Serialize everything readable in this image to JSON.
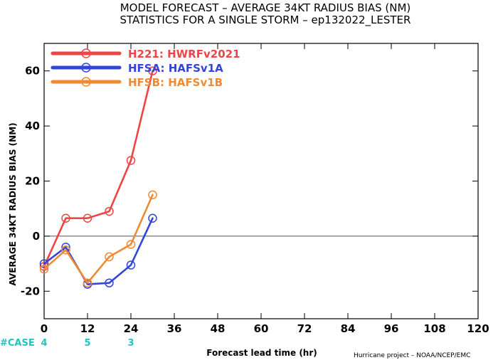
{
  "chart_data": {
    "type": "line",
    "title": "MODEL FORECAST – AVERAGE 34KT RADIUS BIAS (NM)",
    "subtitle": "STATISTICS FOR A SINGLE STORM – ep132022_LESTER",
    "xlabel": "Forecast lead time (hr)",
    "ylabel": "AVERAGE 34KT RADIUS BIAS (NM)",
    "xlim": [
      0,
      120
    ],
    "ylim": [
      -30,
      70
    ],
    "xticks": [
      0,
      12,
      24,
      36,
      48,
      60,
      72,
      84,
      96,
      108,
      120
    ],
    "yticks": [
      -20,
      0,
      20,
      40,
      60
    ],
    "zero_line": true,
    "legend_position": "top-left",
    "series": [
      {
        "name": "H221: HWRFv2021",
        "color": "#ee4444",
        "x": [
          0,
          6,
          12,
          18,
          24,
          30
        ],
        "y": [
          -11,
          6.5,
          6.5,
          9,
          27.5,
          60
        ]
      },
      {
        "name": "HFSA: HAFSv1A",
        "color": "#3344dd",
        "x": [
          0,
          6,
          12,
          18,
          24,
          30
        ],
        "y": [
          -10,
          -4,
          -17.5,
          -17,
          -10.5,
          6.5
        ]
      },
      {
        "name": "HFSB: HAFSv1B",
        "color": "#ee8a33",
        "x": [
          0,
          6,
          12,
          18,
          24,
          30
        ],
        "y": [
          -12,
          -5,
          -17,
          -7.5,
          -3,
          15
        ]
      }
    ],
    "cases_label": "#CASE",
    "cases": [
      {
        "x": 0,
        "count": "4"
      },
      {
        "x": 12,
        "count": "5"
      },
      {
        "x": 24,
        "count": "3"
      }
    ],
    "credit": "Hurricane project – NOAA/NCEP/EMC"
  }
}
